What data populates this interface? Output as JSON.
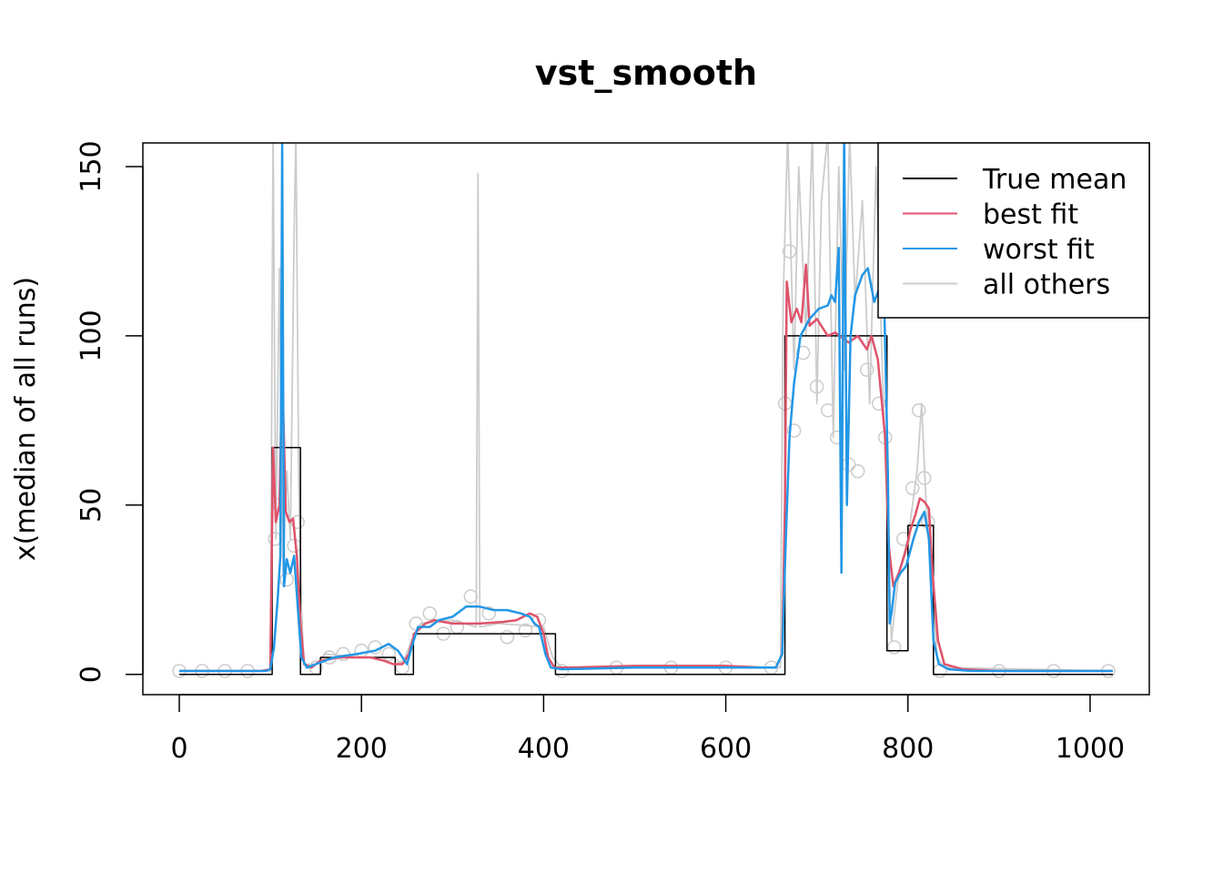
{
  "chart_data": {
    "type": "line",
    "title": "vst_smooth",
    "xlabel": "",
    "ylabel": "x(median of all runs)",
    "xlim": [
      -40,
      1065
    ],
    "ylim": [
      -6,
      157
    ],
    "x_ticks": [
      0,
      200,
      400,
      600,
      800,
      1000
    ],
    "x_tick_labels": [
      "0",
      "200",
      "400",
      "600",
      "800",
      "1000"
    ],
    "y_ticks": [
      0,
      50,
      100,
      150
    ],
    "y_tick_labels": [
      "0",
      "50",
      "100",
      "150"
    ],
    "grid": false,
    "legend_position": "top-right",
    "series": [
      {
        "name": "True mean",
        "color": "#000000",
        "points": [
          [
            0,
            0
          ],
          [
            102,
            0
          ],
          [
            102,
            67
          ],
          [
            133,
            67
          ],
          [
            133,
            0
          ],
          [
            155,
            0
          ],
          [
            155,
            5
          ],
          [
            237,
            5
          ],
          [
            237,
            0
          ],
          [
            257,
            0
          ],
          [
            257,
            12
          ],
          [
            413,
            12
          ],
          [
            413,
            0
          ],
          [
            665,
            0
          ],
          [
            665,
            100
          ],
          [
            777,
            100
          ],
          [
            777,
            7
          ],
          [
            800,
            7
          ],
          [
            800,
            44
          ],
          [
            828,
            44
          ],
          [
            828,
            0
          ],
          [
            1025,
            0
          ]
        ]
      },
      {
        "name": "best fit",
        "color": "#df536b",
        "points": [
          [
            0,
            1
          ],
          [
            90,
            1
          ],
          [
            100,
            1.5
          ],
          [
            103,
            67
          ],
          [
            106,
            45
          ],
          [
            110,
            50
          ],
          [
            113,
            90
          ],
          [
            117,
            48
          ],
          [
            121,
            45
          ],
          [
            125,
            46
          ],
          [
            129,
            35
          ],
          [
            133,
            15
          ],
          [
            137,
            3
          ],
          [
            145,
            2
          ],
          [
            155,
            4
          ],
          [
            175,
            5
          ],
          [
            210,
            5
          ],
          [
            225,
            4
          ],
          [
            235,
            3
          ],
          [
            245,
            3
          ],
          [
            252,
            6
          ],
          [
            258,
            12
          ],
          [
            270,
            15
          ],
          [
            280,
            16
          ],
          [
            290,
            15.5
          ],
          [
            300,
            15
          ],
          [
            330,
            15
          ],
          [
            355,
            15.5
          ],
          [
            370,
            16
          ],
          [
            385,
            18
          ],
          [
            393,
            17
          ],
          [
            400,
            12
          ],
          [
            405,
            5
          ],
          [
            412,
            2
          ],
          [
            425,
            2
          ],
          [
            500,
            2.5
          ],
          [
            600,
            2.5
          ],
          [
            640,
            2
          ],
          [
            655,
            2
          ],
          [
            662,
            6
          ],
          [
            665,
            50
          ],
          [
            667,
            116
          ],
          [
            672,
            104
          ],
          [
            678,
            108
          ],
          [
            683,
            104
          ],
          [
            688,
            121
          ],
          [
            692,
            103
          ],
          [
            700,
            105
          ],
          [
            712,
            100
          ],
          [
            720,
            101
          ],
          [
            735,
            98
          ],
          [
            745,
            100
          ],
          [
            755,
            96
          ],
          [
            760,
            100
          ],
          [
            767,
            93
          ],
          [
            775,
            70
          ],
          [
            779,
            38
          ],
          [
            784,
            26
          ],
          [
            790,
            30
          ],
          [
            797,
            36
          ],
          [
            803,
            43
          ],
          [
            808,
            47
          ],
          [
            813,
            52
          ],
          [
            818,
            51
          ],
          [
            823,
            49
          ],
          [
            827,
            30
          ],
          [
            833,
            10
          ],
          [
            840,
            3
          ],
          [
            860,
            1.5
          ],
          [
            900,
            1
          ],
          [
            1025,
            1
          ]
        ]
      },
      {
        "name": "worst fit",
        "color": "#2297e6",
        "points": [
          [
            0,
            1
          ],
          [
            95,
            1
          ],
          [
            100,
            1.5
          ],
          [
            104,
            8
          ],
          [
            108,
            22
          ],
          [
            111,
            35
          ],
          [
            113,
            157
          ],
          [
            115,
            26
          ],
          [
            118,
            34
          ],
          [
            122,
            30
          ],
          [
            126,
            35
          ],
          [
            130,
            20
          ],
          [
            134,
            5
          ],
          [
            140,
            2
          ],
          [
            150,
            3
          ],
          [
            170,
            5
          ],
          [
            195,
            6
          ],
          [
            215,
            7
          ],
          [
            230,
            9
          ],
          [
            240,
            7
          ],
          [
            250,
            3
          ],
          [
            255,
            8
          ],
          [
            262,
            14
          ],
          [
            275,
            14
          ],
          [
            285,
            16
          ],
          [
            300,
            17
          ],
          [
            315,
            20
          ],
          [
            330,
            20
          ],
          [
            345,
            19
          ],
          [
            360,
            19
          ],
          [
            375,
            18
          ],
          [
            385,
            17
          ],
          [
            390,
            15
          ],
          [
            395,
            14
          ],
          [
            402,
            6
          ],
          [
            408,
            2
          ],
          [
            420,
            1.5
          ],
          [
            500,
            2
          ],
          [
            600,
            2
          ],
          [
            640,
            2
          ],
          [
            655,
            2
          ],
          [
            662,
            6
          ],
          [
            666,
            40
          ],
          [
            670,
            70
          ],
          [
            675,
            86
          ],
          [
            682,
            100
          ],
          [
            692,
            105
          ],
          [
            702,
            108
          ],
          [
            712,
            109
          ],
          [
            716,
            112
          ],
          [
            720,
            110
          ],
          [
            724,
            126
          ],
          [
            727,
            30
          ],
          [
            730,
            160
          ],
          [
            733,
            50
          ],
          [
            737,
            100
          ],
          [
            742,
            112
          ],
          [
            750,
            118
          ],
          [
            756,
            120
          ],
          [
            763,
            110
          ],
          [
            770,
            115
          ],
          [
            774,
            110
          ],
          [
            778,
            60
          ],
          [
            780,
            15
          ],
          [
            782,
            18
          ],
          [
            786,
            27
          ],
          [
            792,
            30
          ],
          [
            798,
            32
          ],
          [
            806,
            40
          ],
          [
            812,
            45
          ],
          [
            818,
            48
          ],
          [
            823,
            40
          ],
          [
            828,
            10
          ],
          [
            834,
            3
          ],
          [
            845,
            1.5
          ],
          [
            870,
            1
          ],
          [
            1025,
            1
          ]
        ]
      },
      {
        "name": "all others",
        "color": "#cccccc",
        "points": [
          [
            0,
            1
          ],
          [
            100,
            1
          ],
          [
            103,
            160
          ],
          [
            106,
            40
          ],
          [
            110,
            120
          ],
          [
            114,
            30
          ],
          [
            118,
            60
          ],
          [
            122,
            40
          ],
          [
            126,
            130
          ],
          [
            128,
            160
          ],
          [
            131,
            60
          ],
          [
            134,
            20
          ],
          [
            137,
            3
          ],
          [
            150,
            3
          ],
          [
            160,
            6
          ],
          [
            200,
            5
          ],
          [
            235,
            5
          ],
          [
            245,
            3
          ],
          [
            255,
            10
          ],
          [
            265,
            15
          ],
          [
            300,
            16
          ],
          [
            326,
            14
          ],
          [
            328,
            148
          ],
          [
            330,
            14
          ],
          [
            350,
            15
          ],
          [
            400,
            14
          ],
          [
            410,
            5
          ],
          [
            420,
            2
          ],
          [
            600,
            2
          ],
          [
            660,
            2
          ],
          [
            663,
            110
          ],
          [
            668,
            160
          ],
          [
            675,
            90
          ],
          [
            680,
            150
          ],
          [
            688,
            100
          ],
          [
            695,
            160
          ],
          [
            700,
            80
          ],
          [
            705,
            140
          ],
          [
            712,
            160
          ],
          [
            718,
            70
          ],
          [
            724,
            150
          ],
          [
            730,
            90
          ],
          [
            736,
            160
          ],
          [
            742,
            110
          ],
          [
            750,
            140
          ],
          [
            758,
            80
          ],
          [
            765,
            150
          ],
          [
            772,
            90
          ],
          [
            778,
            40
          ],
          [
            782,
            10
          ],
          [
            790,
            30
          ],
          [
            800,
            40
          ],
          [
            810,
            60
          ],
          [
            815,
            80
          ],
          [
            820,
            50
          ],
          [
            826,
            30
          ],
          [
            832,
            5
          ],
          [
            840,
            2
          ],
          [
            1025,
            1
          ]
        ]
      }
    ],
    "all_other_points": [
      [
        0,
        1
      ],
      [
        25,
        1
      ],
      [
        50,
        1
      ],
      [
        75,
        1
      ],
      [
        105,
        40
      ],
      [
        110,
        50
      ],
      [
        118,
        28
      ],
      [
        126,
        38
      ],
      [
        130,
        45
      ],
      [
        150,
        2
      ],
      [
        165,
        5
      ],
      [
        180,
        6
      ],
      [
        200,
        7
      ],
      [
        215,
        8
      ],
      [
        230,
        6
      ],
      [
        245,
        2
      ],
      [
        260,
        15
      ],
      [
        275,
        18
      ],
      [
        290,
        12
      ],
      [
        305,
        14
      ],
      [
        320,
        23
      ],
      [
        340,
        18
      ],
      [
        360,
        11
      ],
      [
        380,
        13
      ],
      [
        395,
        16
      ],
      [
        420,
        1
      ],
      [
        480,
        2
      ],
      [
        540,
        2
      ],
      [
        600,
        2
      ],
      [
        650,
        2
      ],
      [
        665,
        80
      ],
      [
        670,
        125
      ],
      [
        675,
        72
      ],
      [
        685,
        95
      ],
      [
        700,
        85
      ],
      [
        712,
        78
      ],
      [
        722,
        70
      ],
      [
        735,
        62
      ],
      [
        745,
        60
      ],
      [
        755,
        90
      ],
      [
        768,
        80
      ],
      [
        775,
        70
      ],
      [
        785,
        8
      ],
      [
        795,
        40
      ],
      [
        805,
        55
      ],
      [
        812,
        78
      ],
      [
        818,
        58
      ],
      [
        822,
        45
      ],
      [
        835,
        1
      ],
      [
        900,
        1
      ],
      [
        960,
        1
      ],
      [
        1020,
        1
      ]
    ]
  }
}
